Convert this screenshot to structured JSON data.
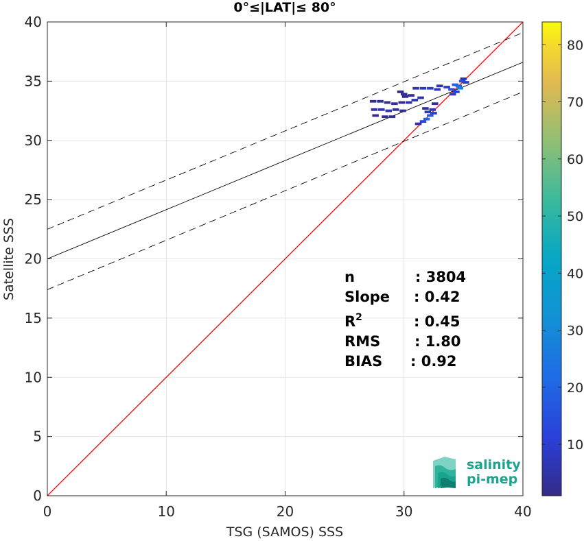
{
  "chart_data": {
    "type": "scatter",
    "title": "0°≤|LAT|≤ 80°",
    "xlabel": "TSG (SAMOS) SSS",
    "ylabel": "Satellite SSS",
    "xlim": [
      0,
      40
    ],
    "ylim": [
      0,
      40
    ],
    "xticks": [
      0,
      10,
      20,
      30,
      40
    ],
    "yticks": [
      0,
      5,
      10,
      15,
      20,
      25,
      30,
      35,
      40
    ],
    "grid": true,
    "colorbar": {
      "range": [
        1,
        84
      ],
      "ticks": [
        10,
        20,
        30,
        40,
        50,
        60,
        70,
        80
      ]
    },
    "lines": [
      {
        "name": "1:1",
        "color": "#ff0000",
        "style": "solid",
        "points": [
          [
            0,
            0
          ],
          [
            40,
            40
          ]
        ]
      },
      {
        "name": "fit",
        "color": "#000000",
        "style": "solid",
        "points": [
          [
            0,
            20.0
          ],
          [
            40,
            36.6
          ]
        ]
      },
      {
        "name": "fit+",
        "color": "#000000",
        "style": "dashed",
        "points": [
          [
            0,
            22.5
          ],
          [
            40,
            39.1
          ]
        ]
      },
      {
        "name": "fit-",
        "color": "#000000",
        "style": "dashed",
        "points": [
          [
            0,
            17.4
          ],
          [
            40,
            34.1
          ]
        ]
      }
    ],
    "density_cells": [
      {
        "x": 27.4,
        "y": 33.3,
        "n": 2
      },
      {
        "x": 28.0,
        "y": 33.3,
        "n": 3
      },
      {
        "x": 28.6,
        "y": 33.2,
        "n": 2
      },
      {
        "x": 29.2,
        "y": 33.1,
        "n": 4
      },
      {
        "x": 29.8,
        "y": 33.2,
        "n": 3
      },
      {
        "x": 30.4,
        "y": 33.2,
        "n": 5
      },
      {
        "x": 30.9,
        "y": 33.4,
        "n": 6
      },
      {
        "x": 30.6,
        "y": 33.8,
        "n": 4
      },
      {
        "x": 29.7,
        "y": 34.1,
        "n": 2
      },
      {
        "x": 30.0,
        "y": 33.9,
        "n": 3
      },
      {
        "x": 31.0,
        "y": 34.4,
        "n": 6
      },
      {
        "x": 31.6,
        "y": 34.4,
        "n": 8
      },
      {
        "x": 32.2,
        "y": 34.4,
        "n": 9
      },
      {
        "x": 32.8,
        "y": 34.3,
        "n": 7
      },
      {
        "x": 33.6,
        "y": 34.5,
        "n": 10
      },
      {
        "x": 34.0,
        "y": 34.3,
        "n": 14
      },
      {
        "x": 34.3,
        "y": 34.7,
        "n": 18
      },
      {
        "x": 34.6,
        "y": 34.6,
        "n": 22
      },
      {
        "x": 34.9,
        "y": 35.0,
        "n": 15
      },
      {
        "x": 35.2,
        "y": 34.9,
        "n": 9
      },
      {
        "x": 34.4,
        "y": 34.1,
        "n": 12
      },
      {
        "x": 34.1,
        "y": 33.9,
        "n": 8
      },
      {
        "x": 35.0,
        "y": 35.2,
        "n": 6
      },
      {
        "x": 34.7,
        "y": 34.4,
        "n": 28
      },
      {
        "x": 27.5,
        "y": 32.6,
        "n": 4
      },
      {
        "x": 28.1,
        "y": 32.6,
        "n": 6
      },
      {
        "x": 28.7,
        "y": 32.5,
        "n": 5
      },
      {
        "x": 29.3,
        "y": 32.6,
        "n": 4
      },
      {
        "x": 29.9,
        "y": 32.5,
        "n": 3
      },
      {
        "x": 27.6,
        "y": 32.1,
        "n": 2
      },
      {
        "x": 28.4,
        "y": 32.0,
        "n": 3
      },
      {
        "x": 29.0,
        "y": 32.0,
        "n": 2
      },
      {
        "x": 31.2,
        "y": 31.4,
        "n": 5
      },
      {
        "x": 31.6,
        "y": 31.6,
        "n": 12
      },
      {
        "x": 31.9,
        "y": 31.8,
        "n": 20
      },
      {
        "x": 32.2,
        "y": 32.1,
        "n": 18
      },
      {
        "x": 32.5,
        "y": 32.3,
        "n": 10
      },
      {
        "x": 32.0,
        "y": 32.4,
        "n": 7
      },
      {
        "x": 31.8,
        "y": 32.7,
        "n": 4
      },
      {
        "x": 32.4,
        "y": 32.6,
        "n": 6
      },
      {
        "x": 30.1,
        "y": 33.7,
        "n": 2
      },
      {
        "x": 31.4,
        "y": 33.6,
        "n": 5
      },
      {
        "x": 32.6,
        "y": 33.1,
        "n": 3
      },
      {
        "x": 33.0,
        "y": 34.6,
        "n": 6
      }
    ]
  },
  "stats": [
    {
      "label": "n",
      "value": ": 3804"
    },
    {
      "label": "Slope",
      "value": ": 0.42"
    },
    {
      "label": "R",
      "sup": "2",
      "value": ": 0.45"
    },
    {
      "label": "RMS",
      "value": ": 1.80"
    },
    {
      "label": "BIAS",
      "value": ": 0.92"
    }
  ],
  "logo": {
    "line1": "salinity",
    "line2": "pi-mep",
    "color": "#1aa38f"
  }
}
